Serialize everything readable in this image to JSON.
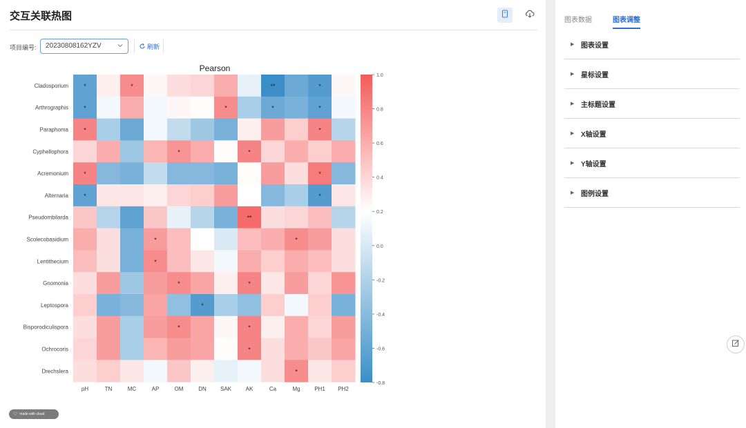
{
  "page": {
    "title": "交互关联热图"
  },
  "toolbar": {
    "project_label": "项目编号:",
    "project_value": "20230808162YZV",
    "refresh_label": "刷新"
  },
  "watermark": {
    "text": "made with cloud"
  },
  "right_panel": {
    "tabs": [
      {
        "label": "图表数据",
        "active": false
      },
      {
        "label": "图表调整",
        "active": true
      }
    ],
    "settings": [
      "图表设置",
      "星标设置",
      "主标题设置",
      "X轴设置",
      "Y轴设置",
      "图例设置"
    ]
  },
  "chart_data": {
    "type": "heatmap",
    "title": "Pearson",
    "x": [
      "pH",
      "TN",
      "MC",
      "AP",
      "OM",
      "DN",
      "SAK",
      "AK",
      "Ca",
      "Mg",
      "PH1",
      "PH2"
    ],
    "y": [
      "Cladosporium",
      "Arthrographis",
      "Paraphoma",
      "Cyphellophora",
      "Acremonium",
      "Alternaria",
      "Pseudombilarda",
      "Scolecobasidium",
      "Lentithecium",
      "Gnomonia",
      "Leptospora",
      "Bisporodiculispora",
      "Ochrocoris",
      "Drechslera"
    ],
    "values": [
      [
        -0.65,
        0.1,
        0.7,
        0.05,
        0.2,
        0.25,
        0.5,
        -0.1,
        -0.8,
        -0.6,
        -0.7,
        0.05
      ],
      [
        -0.65,
        -0.05,
        0.5,
        -0.05,
        0.05,
        0.02,
        0.7,
        -0.35,
        -0.6,
        -0.55,
        -0.65,
        -0.05
      ],
      [
        0.75,
        -0.35,
        -0.6,
        -0.05,
        -0.25,
        -0.4,
        -0.55,
        0.1,
        0.6,
        0.3,
        0.75,
        -0.3
      ],
      [
        0.25,
        0.5,
        -0.4,
        0.45,
        0.65,
        0.5,
        0.02,
        0.75,
        0.25,
        0.5,
        0.3,
        0.5
      ],
      [
        0.75,
        -0.5,
        -0.55,
        -0.25,
        -0.5,
        -0.5,
        -0.55,
        0.02,
        0.6,
        0.2,
        0.8,
        -0.5
      ],
      [
        -0.65,
        0.15,
        0.15,
        0.1,
        0.25,
        0.3,
        0.6,
        0.0,
        -0.5,
        -0.35,
        -0.7,
        0.15
      ],
      [
        0.35,
        -0.3,
        -0.65,
        0.35,
        -0.1,
        -0.3,
        -0.55,
        0.9,
        0.2,
        0.25,
        0.4,
        -0.3
      ],
      [
        0.5,
        0.2,
        -0.55,
        0.6,
        0.4,
        0.0,
        -0.15,
        0.4,
        0.5,
        0.7,
        0.6,
        0.2
      ],
      [
        0.4,
        0.2,
        -0.55,
        0.7,
        0.4,
        0.15,
        -0.05,
        0.5,
        0.3,
        0.5,
        0.4,
        0.2
      ],
      [
        0.2,
        0.6,
        -0.4,
        0.6,
        0.7,
        0.55,
        0.1,
        0.75,
        0.15,
        0.6,
        0.25,
        0.65
      ],
      [
        0.3,
        -0.55,
        -0.5,
        0.55,
        -0.45,
        -0.7,
        -0.35,
        -0.45,
        0.3,
        -0.05,
        0.3,
        -0.55
      ],
      [
        0.2,
        0.6,
        -0.35,
        0.6,
        0.7,
        0.55,
        0.05,
        0.75,
        0.1,
        0.5,
        0.25,
        0.6
      ],
      [
        0.25,
        0.6,
        -0.35,
        0.45,
        0.6,
        0.55,
        0.02,
        0.75,
        0.2,
        0.5,
        0.35,
        0.55
      ],
      [
        0.2,
        0.3,
        0.15,
        -0.05,
        0.35,
        0.1,
        -0.1,
        -0.05,
        0.2,
        0.7,
        0.15,
        0.3
      ]
    ],
    "stars": [
      [
        "*",
        "",
        "*",
        "",
        "",
        "",
        "",
        "",
        "**",
        "",
        "*",
        ""
      ],
      [
        "*",
        "",
        "",
        "",
        "",
        "",
        "*",
        "",
        "*",
        "",
        "*",
        ""
      ],
      [
        "*",
        "",
        "",
        "",
        "",
        "",
        "",
        "",
        "",
        "",
        "*",
        ""
      ],
      [
        "",
        "",
        "",
        "",
        "*",
        "",
        "",
        "*",
        "",
        "",
        "",
        ""
      ],
      [
        "*",
        "",
        "",
        "",
        "",
        "",
        "",
        "",
        "",
        "",
        "*",
        ""
      ],
      [
        "*",
        "",
        "",
        "",
        "",
        "",
        "",
        "",
        "",
        "",
        "*",
        ""
      ],
      [
        "",
        "",
        "",
        "",
        "",
        "",
        "",
        "**",
        "",
        "",
        "",
        ""
      ],
      [
        "",
        "",
        "",
        "*",
        "",
        "",
        "",
        "",
        "",
        "*",
        "",
        ""
      ],
      [
        "",
        "",
        "",
        "*",
        "",
        "",
        "",
        "",
        "",
        "",
        "",
        ""
      ],
      [
        "",
        "",
        "",
        "",
        "*",
        "",
        "",
        "*",
        "",
        "",
        "",
        ""
      ],
      [
        "",
        "",
        "",
        "",
        "",
        "*",
        "",
        "",
        "",
        "",
        "",
        ""
      ],
      [
        "",
        "",
        "",
        "",
        "*",
        "",
        "",
        "*",
        "",
        "",
        "",
        ""
      ],
      [
        "",
        "",
        "",
        "",
        "",
        "",
        "",
        "*",
        "",
        "",
        "",
        ""
      ],
      [
        "",
        "",
        "",
        "",
        "",
        "",
        "",
        "",
        "",
        "*",
        "",
        ""
      ]
    ],
    "color_range": [
      -0.8,
      1.0
    ],
    "colors": {
      "low": "#3b8ec7",
      "mid": "#ffffff",
      "high": "#f45b5b"
    },
    "colorbar_ticks": [
      "1.0",
      "0.8",
      "0.6",
      "0.4",
      "0.2",
      "0.0",
      "-0.2",
      "-0.4",
      "-0.6",
      "-0.8"
    ]
  }
}
